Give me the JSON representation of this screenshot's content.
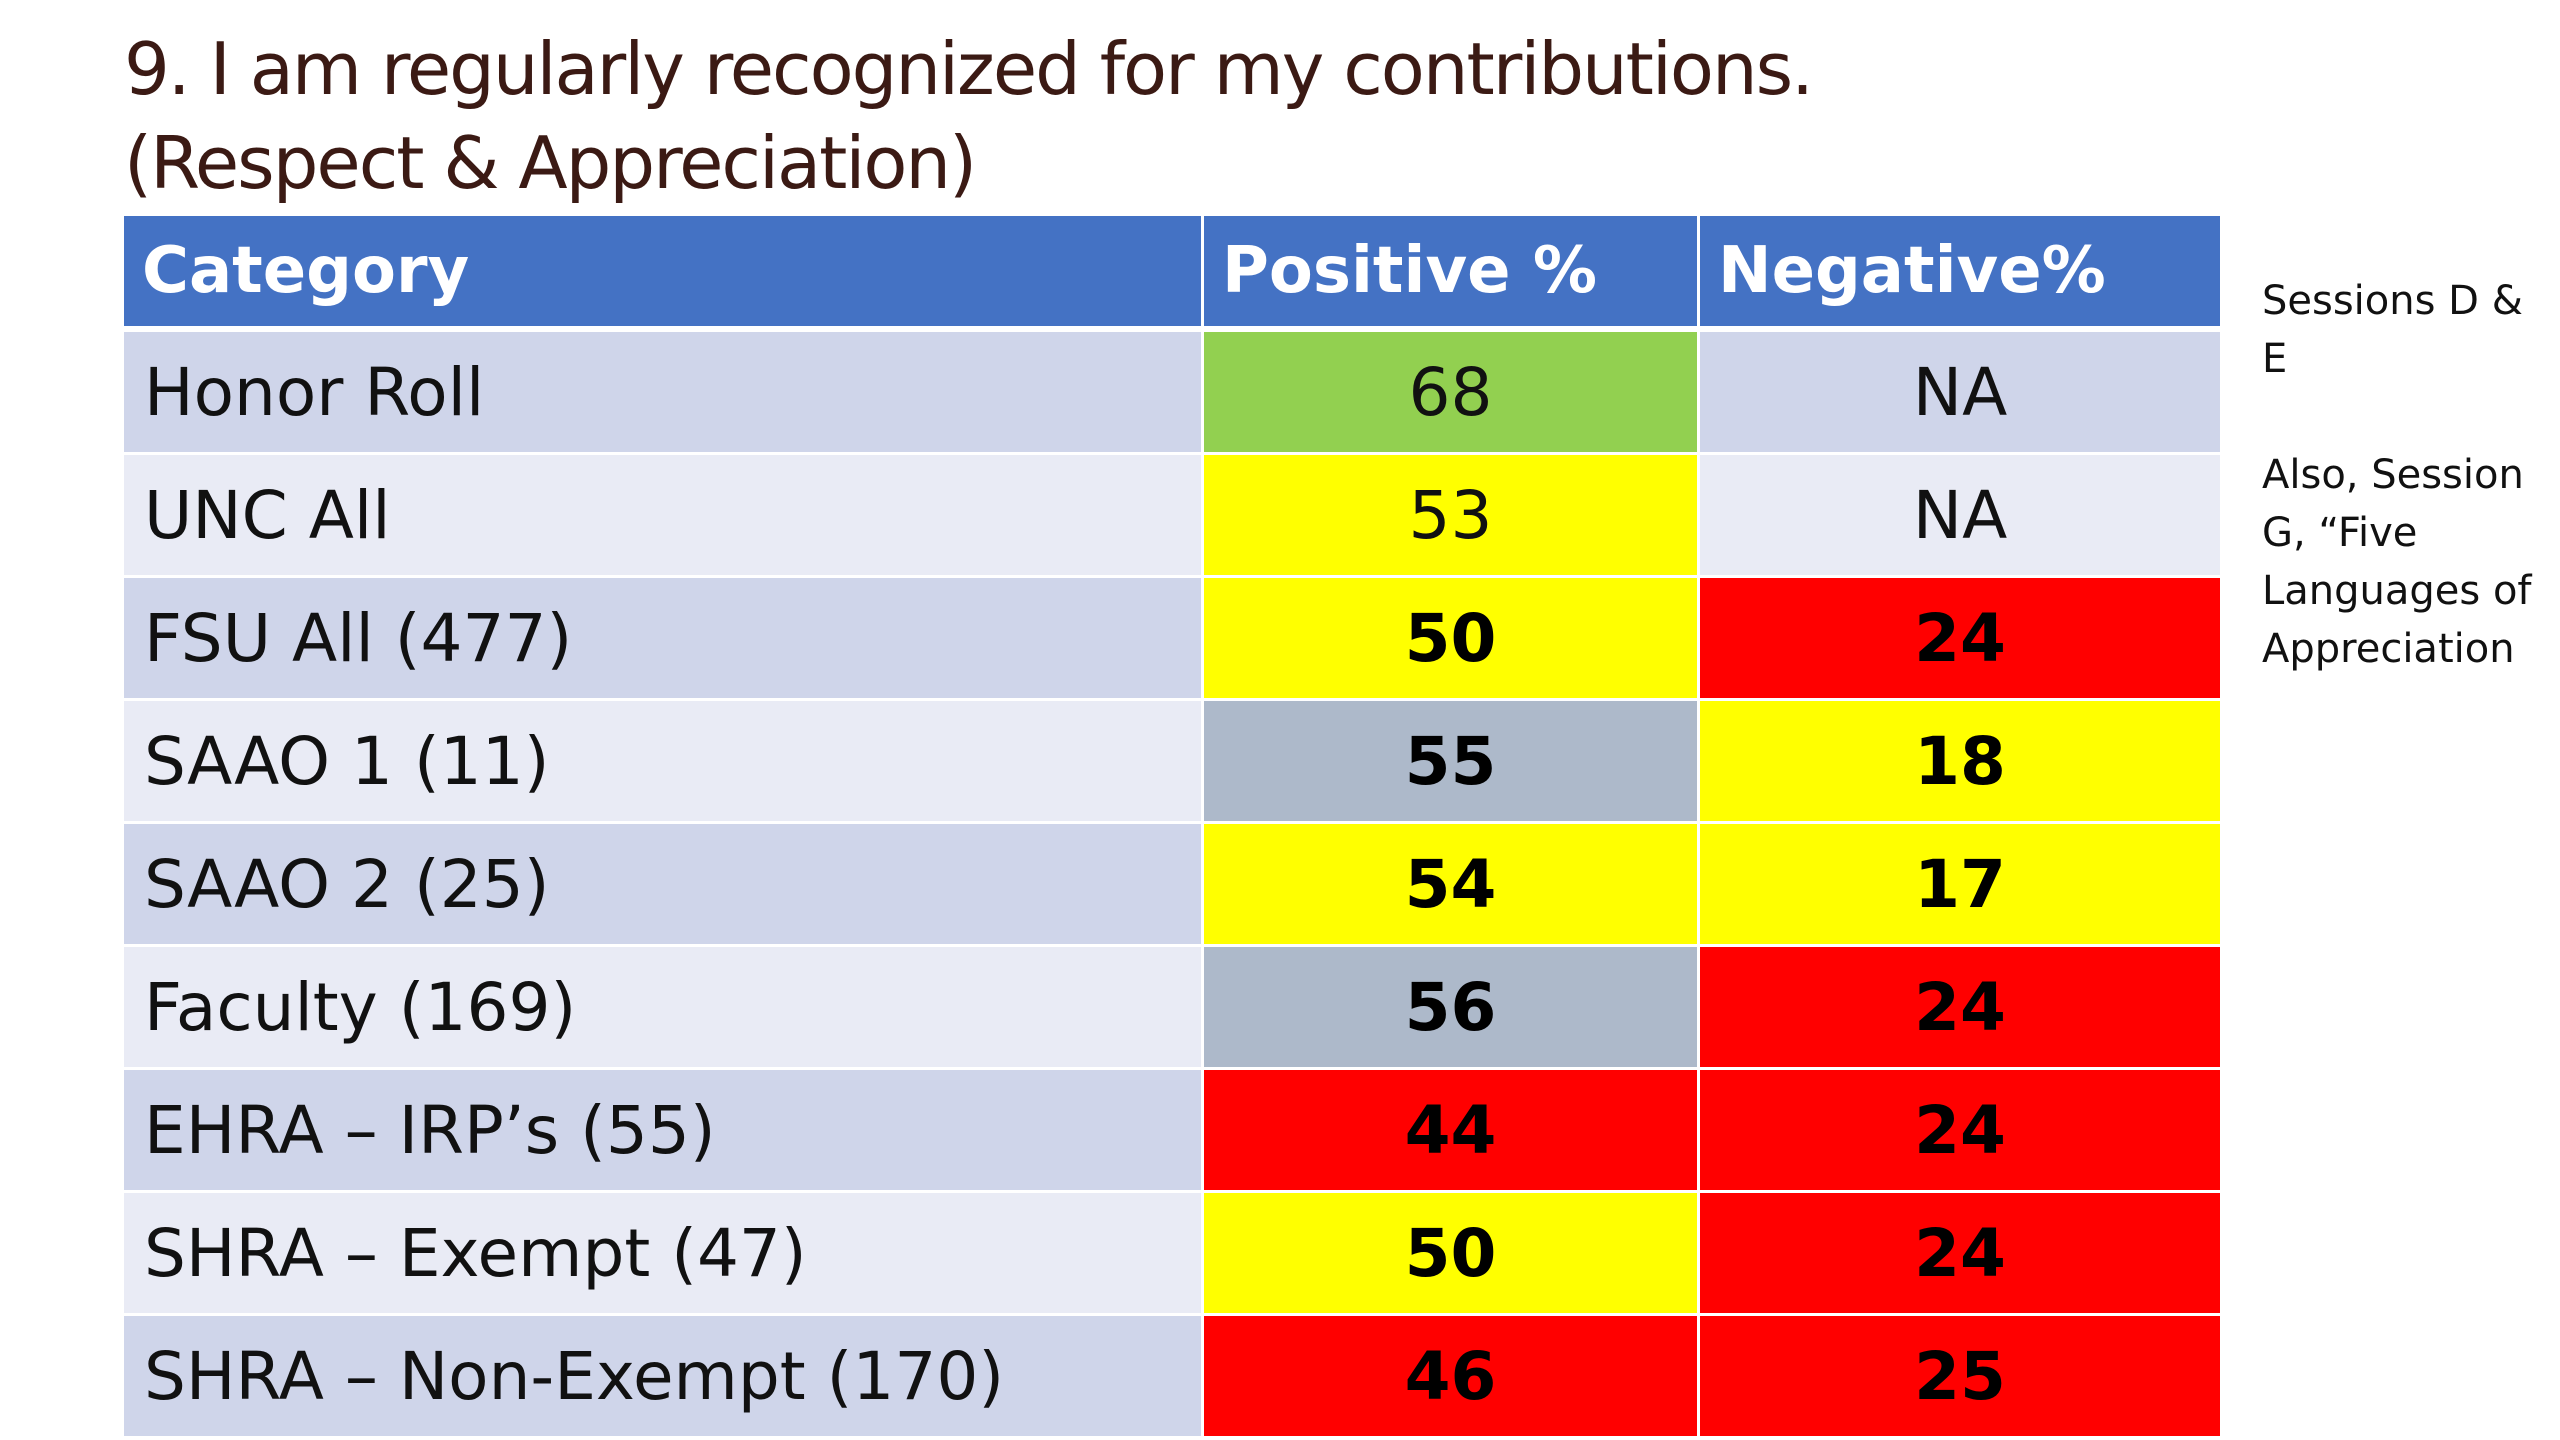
{
  "title": {
    "line1": "9. I am regularly recognized for my contributions.",
    "line2": "(Respect & Appreciation)"
  },
  "table": {
    "headers": [
      "Category",
      "Positive %",
      "Negative%"
    ],
    "rows": [
      {
        "category": "Honor Roll",
        "positive": "68",
        "negative": "NA",
        "bold": false,
        "positive_color": "#92d050",
        "negative_color": null
      },
      {
        "category": "UNC All",
        "positive": "53",
        "negative": "NA",
        "bold": false,
        "positive_color": "#ffff00",
        "negative_color": null
      },
      {
        "category": "FSU All (477)",
        "positive": "50",
        "negative": "24",
        "bold": true,
        "positive_color": "#ffff00",
        "negative_color": "#ff0000"
      },
      {
        "category": "SAAO 1 (11)",
        "positive": "55",
        "negative": "18",
        "bold": true,
        "positive_color": "#adb9ca",
        "negative_color": "#ffff00"
      },
      {
        "category": "SAAO 2 (25)",
        "positive": "54",
        "negative": "17",
        "bold": true,
        "positive_color": "#ffff00",
        "negative_color": "#ffff00"
      },
      {
        "category": "Faculty (169)",
        "positive": "56",
        "negative": "24",
        "bold": true,
        "positive_color": "#adb9ca",
        "negative_color": "#ff0000"
      },
      {
        "category": "EHRA – IRP’s (55)",
        "positive": "44",
        "negative": "24",
        "bold": true,
        "positive_color": "#ff0000",
        "negative_color": "#ff0000"
      },
      {
        "category": "SHRA – Exempt (47)",
        "positive": "50",
        "negative": "24",
        "bold": true,
        "positive_color": "#ffff00",
        "negative_color": "#ff0000"
      },
      {
        "category": "SHRA – Non-Exempt (170)",
        "positive": "46",
        "negative": "25",
        "bold": true,
        "positive_color": "#ff0000",
        "negative_color": "#ff0000"
      }
    ]
  },
  "notes": {
    "note1": "Sessions D & E",
    "note2": "Also, Session G, “Five Languages of Appreciation"
  },
  "colors": {
    "title": "#3b1a14",
    "header_bg": "#4472c4",
    "row_band_dark": "#cfd5ea",
    "row_band_light": "#e9ebf5"
  }
}
